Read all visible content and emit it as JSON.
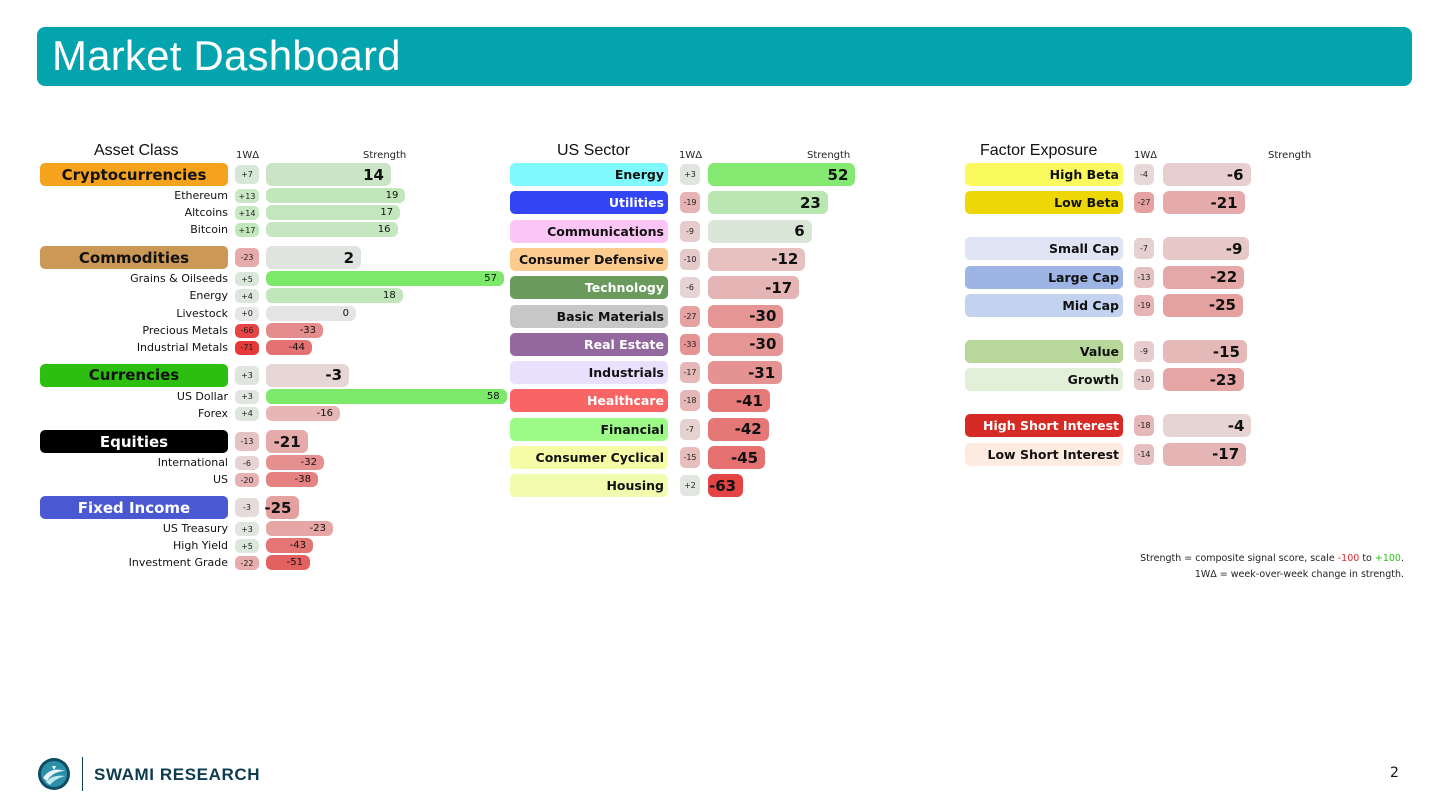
{
  "title": "Market Dashboard",
  "headers": {
    "delta": "1WΔ",
    "strength": "Strength"
  },
  "asset": {
    "title": "Asset Class",
    "rows": [
      {
        "kind": "group",
        "label": "Cryptocurrencies",
        "color": "#f5a21d",
        "text": "#111",
        "d": "+7",
        "v": "14"
      },
      {
        "kind": "item",
        "label": "Ethereum",
        "d": "+13",
        "v": "19"
      },
      {
        "kind": "item",
        "label": "Altcoins",
        "d": "+14",
        "v": "17"
      },
      {
        "kind": "item",
        "label": "Bitcoin",
        "d": "+17",
        "v": "16"
      },
      {
        "kind": "group",
        "label": "Commodities",
        "color": "#cc9856",
        "text": "#111",
        "d": "-23",
        "v": "2"
      },
      {
        "kind": "item",
        "label": "Grains & Oilseeds",
        "d": "+5",
        "v": "57"
      },
      {
        "kind": "item",
        "label": "Energy",
        "d": "+4",
        "v": "18"
      },
      {
        "kind": "item",
        "label": "Livestock",
        "d": "+0",
        "v": "0"
      },
      {
        "kind": "item",
        "label": "Precious Metals",
        "d": "-66",
        "v": "-33"
      },
      {
        "kind": "item",
        "label": "Industrial Metals",
        "d": "-71",
        "v": "-44"
      },
      {
        "kind": "group",
        "label": "Currencies",
        "color": "#2dbf0f",
        "text": "#111",
        "d": "+3",
        "v": "-3"
      },
      {
        "kind": "item",
        "label": "US Dollar",
        "d": "+3",
        "v": "58"
      },
      {
        "kind": "item",
        "label": "Forex",
        "d": "+4",
        "v": "-16"
      },
      {
        "kind": "group",
        "label": "Equities",
        "color": "#000000",
        "text": "#ffffff",
        "d": "-13",
        "v": "-21"
      },
      {
        "kind": "item",
        "label": "International",
        "d": "-6",
        "v": "-32"
      },
      {
        "kind": "item",
        "label": "US",
        "d": "-20",
        "v": "-38"
      },
      {
        "kind": "group",
        "label": "Fixed Income",
        "color": "#4a58d2",
        "text": "#ffffff",
        "d": "-3",
        "v": "-25"
      },
      {
        "kind": "item",
        "label": "US Treasury",
        "d": "+3",
        "v": "-23"
      },
      {
        "kind": "item",
        "label": "High Yield",
        "d": "+5",
        "v": "-43"
      },
      {
        "kind": "item",
        "label": "Investment Grade",
        "d": "-22",
        "v": "-51"
      }
    ]
  },
  "sector": {
    "title": "US Sector",
    "rows": [
      {
        "label": "Energy",
        "color": "#7ff9fb",
        "text": "#111",
        "d": "+3",
        "v": "52"
      },
      {
        "label": "Utilities",
        "color": "#3344f5",
        "text": "#ffffff",
        "d": "-19",
        "v": "23"
      },
      {
        "label": "Communications",
        "color": "#fbc6f6",
        "text": "#111",
        "d": "-9",
        "v": "6"
      },
      {
        "label": "Consumer Defensive",
        "color": "#fecb8e",
        "text": "#111",
        "d": "-10",
        "v": "-12"
      },
      {
        "label": "Technology",
        "color": "#6a9b5c",
        "text": "#ffffff",
        "d": "-6",
        "v": "-17"
      },
      {
        "label": "Basic Materials",
        "color": "#c7c7c7",
        "text": "#111",
        "d": "-27",
        "v": "-30"
      },
      {
        "label": "Real Estate",
        "color": "#93689e",
        "text": "#ffffff",
        "d": "-33",
        "v": "-30"
      },
      {
        "label": "Industrials",
        "color": "#e8e0fd",
        "text": "#111",
        "d": "-17",
        "v": "-31"
      },
      {
        "label": "Healthcare",
        "color": "#f96464",
        "text": "#ffffff",
        "d": "-18",
        "v": "-41"
      },
      {
        "label": "Financial",
        "color": "#9cfb86",
        "text": "#111",
        "d": "-7",
        "v": "-42"
      },
      {
        "label": "Consumer Cyclical",
        "color": "#f6fca5",
        "text": "#111",
        "d": "-15",
        "v": "-45"
      },
      {
        "label": "Housing",
        "color": "#f1fcaf",
        "text": "#111",
        "d": "+2",
        "v": "-63"
      }
    ]
  },
  "factor": {
    "title": "Factor Exposure",
    "rows": [
      {
        "label": "High Beta",
        "color": "#fafa5e",
        "text": "#111",
        "d": "-4",
        "v": "-6"
      },
      {
        "label": "Low Beta",
        "color": "#eed706",
        "text": "#111",
        "d": "-27",
        "v": "-21"
      },
      {
        "label": "Small Cap",
        "color": "#dfe5f5",
        "text": "#111",
        "d": "-7",
        "v": "-9"
      },
      {
        "label": "Large Cap",
        "color": "#9db4e4",
        "text": "#111",
        "d": "-13",
        "v": "-22"
      },
      {
        "label": "Mid Cap",
        "color": "#c2d2ef",
        "text": "#111",
        "d": "-19",
        "v": "-25"
      },
      {
        "label": "Value",
        "color": "#b8d79b",
        "text": "#111",
        "d": "-9",
        "v": "-15"
      },
      {
        "label": "Growth",
        "color": "#e3f0d9",
        "text": "#111",
        "d": "-10",
        "v": "-23"
      },
      {
        "label": "High Short Interest",
        "color": "#d72a25",
        "text": "#ffffff",
        "d": "-18",
        "v": "-4"
      },
      {
        "label": "Low Short Interest",
        "color": "#fdeae0",
        "text": "#111",
        "d": "-14",
        "v": "-17"
      }
    ]
  },
  "footnote": {
    "l1a": "Strength = composite signal score, scale ",
    "l1b": "-100",
    "l1c": " to ",
    "l1d": "+100",
    "l1e": ".",
    "l2": "1WΔ = week-over-week change in strength.",
    "neg_color": "#e02b2b",
    "pos_color": "#2fbf18"
  },
  "brand": {
    "name": "SWAMI RESEARCH",
    "logo": "swami-research-logo"
  },
  "page_number": "2"
}
